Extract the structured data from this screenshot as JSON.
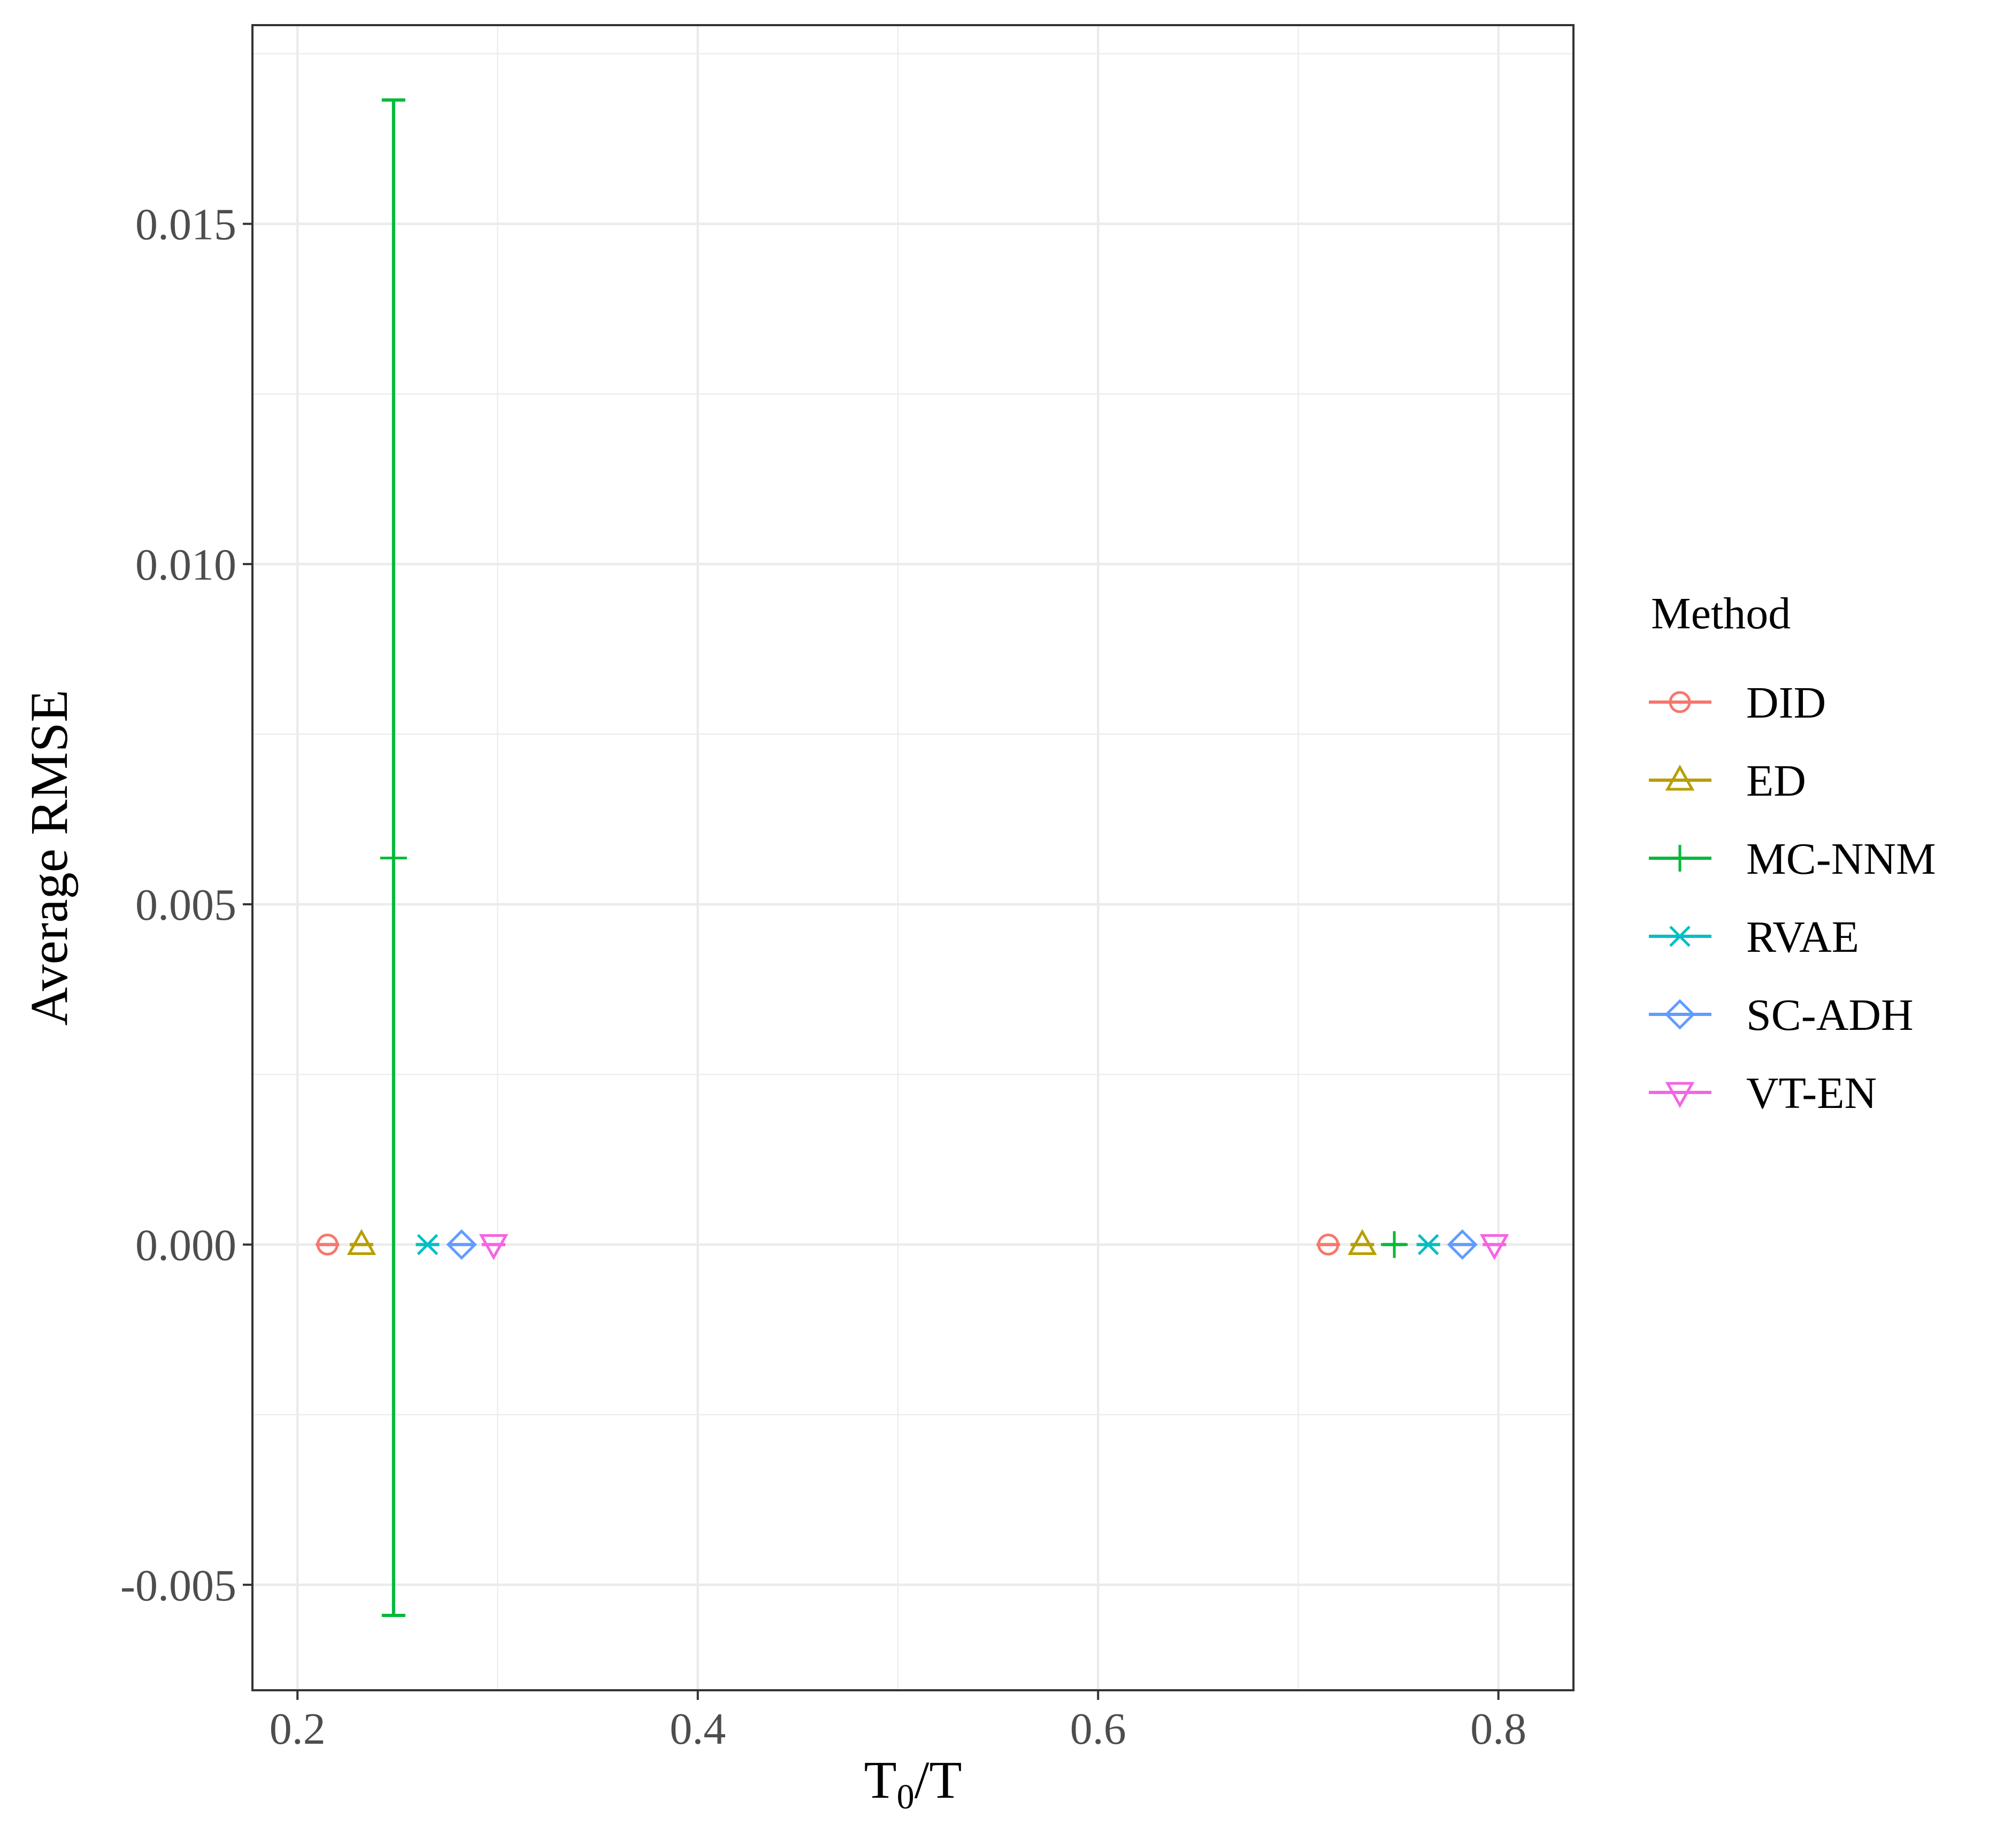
{
  "chart_data": {
    "type": "scatter",
    "title": "",
    "xlabel_main": "T",
    "xlabel_sub": "0",
    "xlabel_rest": "/T",
    "ylabel": "Average RMSE",
    "xlim": [
      0.1775,
      0.8375
    ],
    "ylim": [
      -0.00655,
      0.01792
    ],
    "x_ticks": [
      0.2,
      0.4,
      0.6,
      0.8
    ],
    "x_tick_labels": [
      "0.2",
      "0.4",
      "0.6",
      "0.8"
    ],
    "x_minor_ticks": [
      0.3,
      0.5,
      0.7
    ],
    "y_ticks": [
      -0.005,
      0.0,
      0.005,
      0.01,
      0.015
    ],
    "y_tick_labels": [
      "-0.005",
      "0.000",
      "0.005",
      "0.010",
      "0.015"
    ],
    "y_minor_ticks": [
      -0.0025,
      0.0025,
      0.0075,
      0.0125,
      0.0175
    ],
    "grid": true,
    "legend_title": "Method",
    "legend_position": "right",
    "series": [
      {
        "name": "DID",
        "color": "#F8766D",
        "shape": "circle",
        "points": [
          {
            "x": 0.215,
            "y": 0.0,
            "ymin": 0.0,
            "ymax": 0.0
          },
          {
            "x": 0.715,
            "y": 0.0,
            "ymin": 0.0,
            "ymax": 0.0
          }
        ]
      },
      {
        "name": "ED",
        "color": "#B79F00",
        "shape": "triangle",
        "points": [
          {
            "x": 0.232,
            "y": 0.0,
            "ymin": 0.0,
            "ymax": 0.0
          },
          {
            "x": 0.732,
            "y": 0.0,
            "ymin": 0.0,
            "ymax": 0.0
          }
        ]
      },
      {
        "name": "MC-NNM",
        "color": "#00BA38",
        "shape": "plus",
        "points": [
          {
            "x": 0.248,
            "y": 0.00568,
            "ymin": -0.00545,
            "ymax": 0.01682
          },
          {
            "x": 0.748,
            "y": 0.0,
            "ymin": 0.0,
            "ymax": 0.0
          }
        ]
      },
      {
        "name": "RVAE",
        "color": "#00BFC4",
        "shape": "cross",
        "points": [
          {
            "x": 0.265,
            "y": 0.0,
            "ymin": 0.0,
            "ymax": 0.0
          },
          {
            "x": 0.765,
            "y": 0.0,
            "ymin": 0.0,
            "ymax": 0.0
          }
        ]
      },
      {
        "name": "SC-ADH",
        "color": "#619CFF",
        "shape": "diamond",
        "points": [
          {
            "x": 0.282,
            "y": 0.0,
            "ymin": 0.0,
            "ymax": 0.0
          },
          {
            "x": 0.782,
            "y": 0.0,
            "ymin": 0.0,
            "ymax": 0.0
          }
        ]
      },
      {
        "name": "VT-EN",
        "color": "#F564E3",
        "shape": "triangle-down",
        "points": [
          {
            "x": 0.298,
            "y": 0.0,
            "ymin": 0.0,
            "ymax": 0.0
          },
          {
            "x": 0.798,
            "y": 0.0,
            "ymin": 0.0,
            "ymax": 0.0
          }
        ]
      }
    ]
  }
}
